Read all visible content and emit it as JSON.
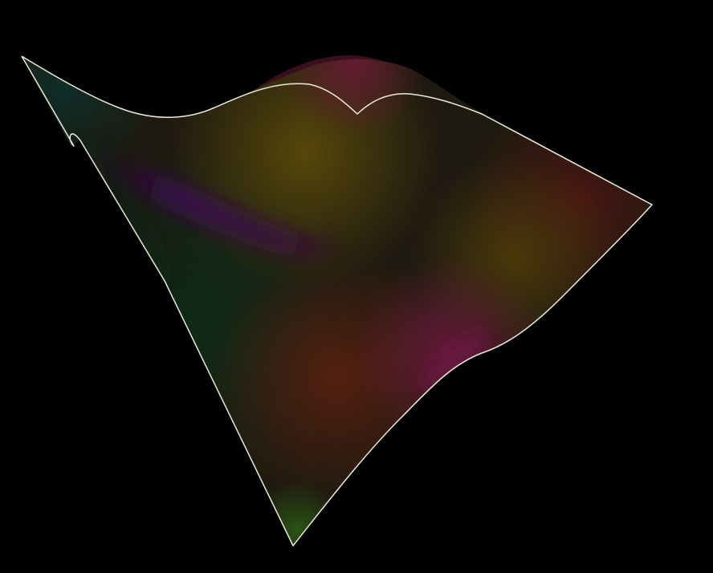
{
  "scene": {
    "description_free": true,
    "colors": {
      "background": "#000000",
      "outline": "#e8ecd8",
      "green_dark": "#0e2a1a",
      "teal_dark": "#103026",
      "olive": "#4a3a08",
      "olive_bright": "#5a4a0a",
      "maroon": "#4a1414",
      "magenta": "#6a1a3a",
      "purple": "#3a0a4a",
      "red_brown": "#5a1e10"
    }
  }
}
